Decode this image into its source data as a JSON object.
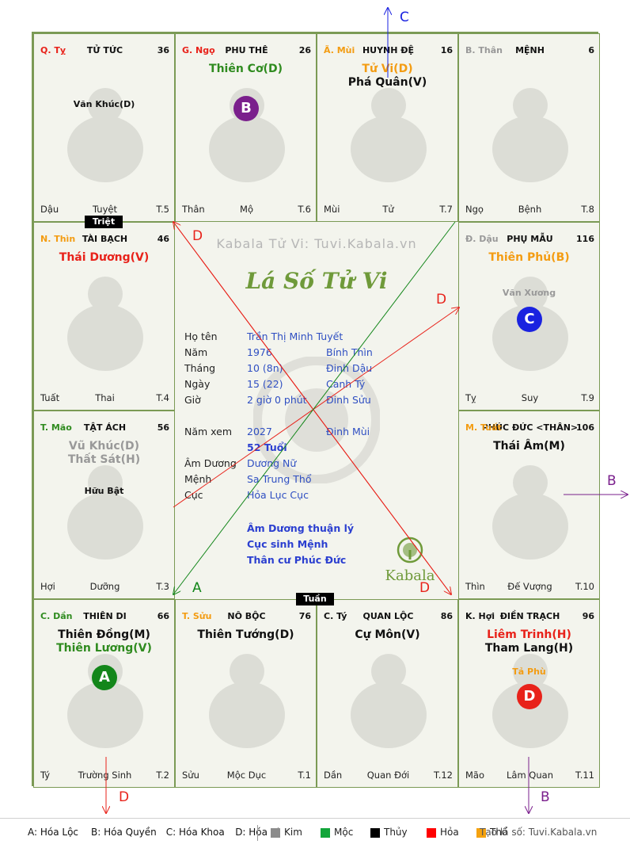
{
  "cells": [
    {
      "id": "ty-snake",
      "branch": "Q. Tỵ",
      "branch_color": "#e8221a",
      "palace": "TỬ TỨC",
      "number": "36",
      "main_stars": [],
      "minor_stars": [
        {
          "text": "Văn Khúc(D)",
          "color": "#111111"
        }
      ],
      "footer": {
        "branch": "Dậu",
        "phase": "Tuyệt",
        "t": "T.5"
      }
    },
    {
      "id": "ngo-horse",
      "branch": "G. Ngọ",
      "branch_color": "#e8221a",
      "palace": "PHU THÊ",
      "number": "26",
      "main_stars": [
        {
          "text": "Thiên Cơ(D)",
          "color": "#2f8b1f"
        }
      ],
      "minor_stars": [],
      "footer": {
        "branch": "Thân",
        "phase": "Mộ",
        "t": "T.6"
      }
    },
    {
      "id": "mui-goat",
      "branch": "Ã. Mùi",
      "branch_color": "#f39c12",
      "palace": "HUYNH ĐỆ",
      "number": "16",
      "main_stars": [
        {
          "text": "Tử Vi(D)",
          "color": "#f39c12"
        },
        {
          "text": "Phá Quân(V)",
          "color": "#111111"
        }
      ],
      "minor_stars": [],
      "footer": {
        "branch": "Mùi",
        "phase": "Tử",
        "t": "T.7"
      }
    },
    {
      "id": "than-monkey",
      "branch": "B. Thân",
      "branch_color": "#999999",
      "palace": "MỆNH",
      "number": "6",
      "main_stars": [],
      "minor_stars": [],
      "footer": {
        "branch": "Ngọ",
        "phase": "Bệnh",
        "t": "T.8"
      }
    },
    {
      "id": "thin-dragon",
      "branch": "N. Thìn",
      "branch_color": "#f39c12",
      "palace": "TÀI BẠCH",
      "number": "46",
      "main_stars": [
        {
          "text": "Thái Dương(V)",
          "color": "#e8221a"
        }
      ],
      "minor_stars": [],
      "footer": {
        "branch": "Tuất",
        "phase": "Thai",
        "t": "T.4"
      }
    },
    {
      "id": "dau-rooster",
      "branch": "Đ. Dậu",
      "branch_color": "#999999",
      "palace": "PHỤ MẪU",
      "number": "116",
      "main_stars": [
        {
          "text": "Thiên Phủ(B)",
          "color": "#f39c12"
        }
      ],
      "minor_stars": [
        {
          "text": "Văn Xương",
          "color": "#999999"
        }
      ],
      "footer": {
        "branch": "Tỵ",
        "phase": "Suy",
        "t": "T.9"
      }
    },
    {
      "id": "mao-cat",
      "branch": "T. Mão",
      "branch_color": "#2f8b1f",
      "palace": "TẬT ÁCH",
      "number": "56",
      "main_stars": [
        {
          "text": "Vũ Khúc(D)",
          "color": "#999999"
        },
        {
          "text": "Thất Sát(H)",
          "color": "#999999"
        }
      ],
      "minor_stars": [
        {
          "text": "Hữu Bật",
          "color": "#111111"
        }
      ],
      "footer": {
        "branch": "Hợi",
        "phase": "Dưỡng",
        "t": "T.3"
      }
    },
    {
      "id": "tuat-dog",
      "branch": "M. Tuất",
      "branch_color": "#f39c12",
      "palace": "PHÚC ĐỨC <THÂN>",
      "number": "106",
      "main_stars": [
        {
          "text": "Thái Âm(M)",
          "color": "#111111"
        }
      ],
      "minor_stars": [],
      "footer": {
        "branch": "Thìn",
        "phase": "Đế Vượng",
        "t": "T.10"
      }
    },
    {
      "id": "dan-tiger",
      "branch": "C. Dần",
      "branch_color": "#2f8b1f",
      "palace": "THIÊN DI",
      "number": "66",
      "main_stars": [
        {
          "text": "Thiên Đồng(M)",
          "color": "#111111"
        },
        {
          "text": "Thiên Lương(V)",
          "color": "#2f8b1f"
        }
      ],
      "minor_stars": [],
      "footer": {
        "branch": "Tý",
        "phase": "Trường Sinh",
        "t": "T.2"
      }
    },
    {
      "id": "suu-ox",
      "branch": "T. Sửu",
      "branch_color": "#f39c12",
      "palace": "NÔ BỘC",
      "number": "76",
      "main_stars": [
        {
          "text": "Thiên Tướng(D)",
          "color": "#111111"
        }
      ],
      "minor_stars": [],
      "footer": {
        "branch": "Sửu",
        "phase": "Mộc Dục",
        "t": "T.1"
      }
    },
    {
      "id": "ty-rat",
      "branch": "C. Tý",
      "branch_color": "#111111",
      "palace": "QUAN LỘC",
      "number": "86",
      "main_stars": [
        {
          "text": "Cự Môn(V)",
          "color": "#111111"
        }
      ],
      "minor_stars": [],
      "footer": {
        "branch": "Dần",
        "phase": "Quan Đới",
        "t": "T.12"
      }
    },
    {
      "id": "hoi-pig",
      "branch": "K. Hợi",
      "branch_color": "#111111",
      "palace": "ĐIỀN TRẠCH",
      "number": "96",
      "main_stars": [
        {
          "text": "Liêm Trinh(H)",
          "color": "#e8221a"
        },
        {
          "text": "Tham Lang(H)",
          "color": "#111111"
        }
      ],
      "minor_stars": [
        {
          "text": "Tả Phù",
          "color": "#f39c12"
        }
      ],
      "footer": {
        "branch": "Mão",
        "phase": "Lâm Quan",
        "t": "T.11"
      }
    }
  ],
  "badges": [
    {
      "letter": "B",
      "color": "#7a1f8c",
      "cell": "ngo-horse"
    },
    {
      "letter": "C",
      "color": "#1a22e0",
      "cell": "dau-rooster"
    },
    {
      "letter": "A",
      "color": "#13861a",
      "cell": "dan-tiger"
    },
    {
      "letter": "D",
      "color": "#e8221a",
      "cell": "hoi-pig"
    }
  ],
  "tags": {
    "triet": "Triệt",
    "tuan": "Tuần"
  },
  "center": {
    "watermark": "Kabala Tử Vi: Tuvi.Kabala.vn",
    "title": "Lá Số Tử Vi",
    "info": [
      {
        "label": "Họ tên",
        "value": "Trần Thị Minh Tuyết",
        "value2": ""
      },
      {
        "label": "Năm",
        "value": "1976",
        "value2": "Bính Thìn"
      },
      {
        "label": "Tháng",
        "value": "10 (8n)",
        "value2": "Đinh Dậu"
      },
      {
        "label": "Ngày",
        "value": "15  (22)",
        "value2": "Canh Tý"
      },
      {
        "label": "Giờ",
        "value": "2 giờ 0 phút",
        "value2": "Đinh Sửu"
      },
      {
        "label": "Năm xem",
        "value": "2027",
        "value2": "Đinh Mùi"
      },
      {
        "label": "",
        "value": "52 Tuổi",
        "value2": ""
      },
      {
        "label": "Âm Dương",
        "value": "Dương Nữ",
        "value2": ""
      },
      {
        "label": "Mệnh",
        "value": "Sa Trung Thổ",
        "value2": ""
      },
      {
        "label": "Cục",
        "value": "Hỏa Lục Cục",
        "value2": ""
      }
    ],
    "notes": [
      "Âm Dương thuận lý",
      "Cục sinh Mệnh",
      "Thân cư Phúc Đức"
    ],
    "logo_text": "Kabala"
  },
  "arrow_labels": {
    "c": "C",
    "b_right": "B",
    "b_bottom": "B",
    "d_bottom": "D",
    "d_upper": "D",
    "d_right": "D",
    "d_lower": "D",
    "a": "A"
  },
  "legend": {
    "items": [
      {
        "key": "A",
        "text": "A: Hóa Lộc",
        "color": "#2f8b1f"
      },
      {
        "key": "B",
        "text": "B: Hóa Quyền",
        "color": "#7a1f8c"
      },
      {
        "key": "C",
        "text": "C: Hóa Khoa",
        "color": "#1a22e0"
      },
      {
        "key": "D",
        "text": "D: Hóa Kị",
        "color": "#e8221a"
      }
    ],
    "elements": [
      {
        "name": "Kim",
        "color": "#8c8c8c"
      },
      {
        "name": "Mộc",
        "color": "#12a53a"
      },
      {
        "name": "Thủy",
        "color": "#000000"
      },
      {
        "name": "Hỏa",
        "color": "#ff0000"
      },
      {
        "name": "Thổ",
        "color": "#f5a20f"
      }
    ],
    "site": "Tạo lá số: Tuvi.Kabala.vn"
  }
}
